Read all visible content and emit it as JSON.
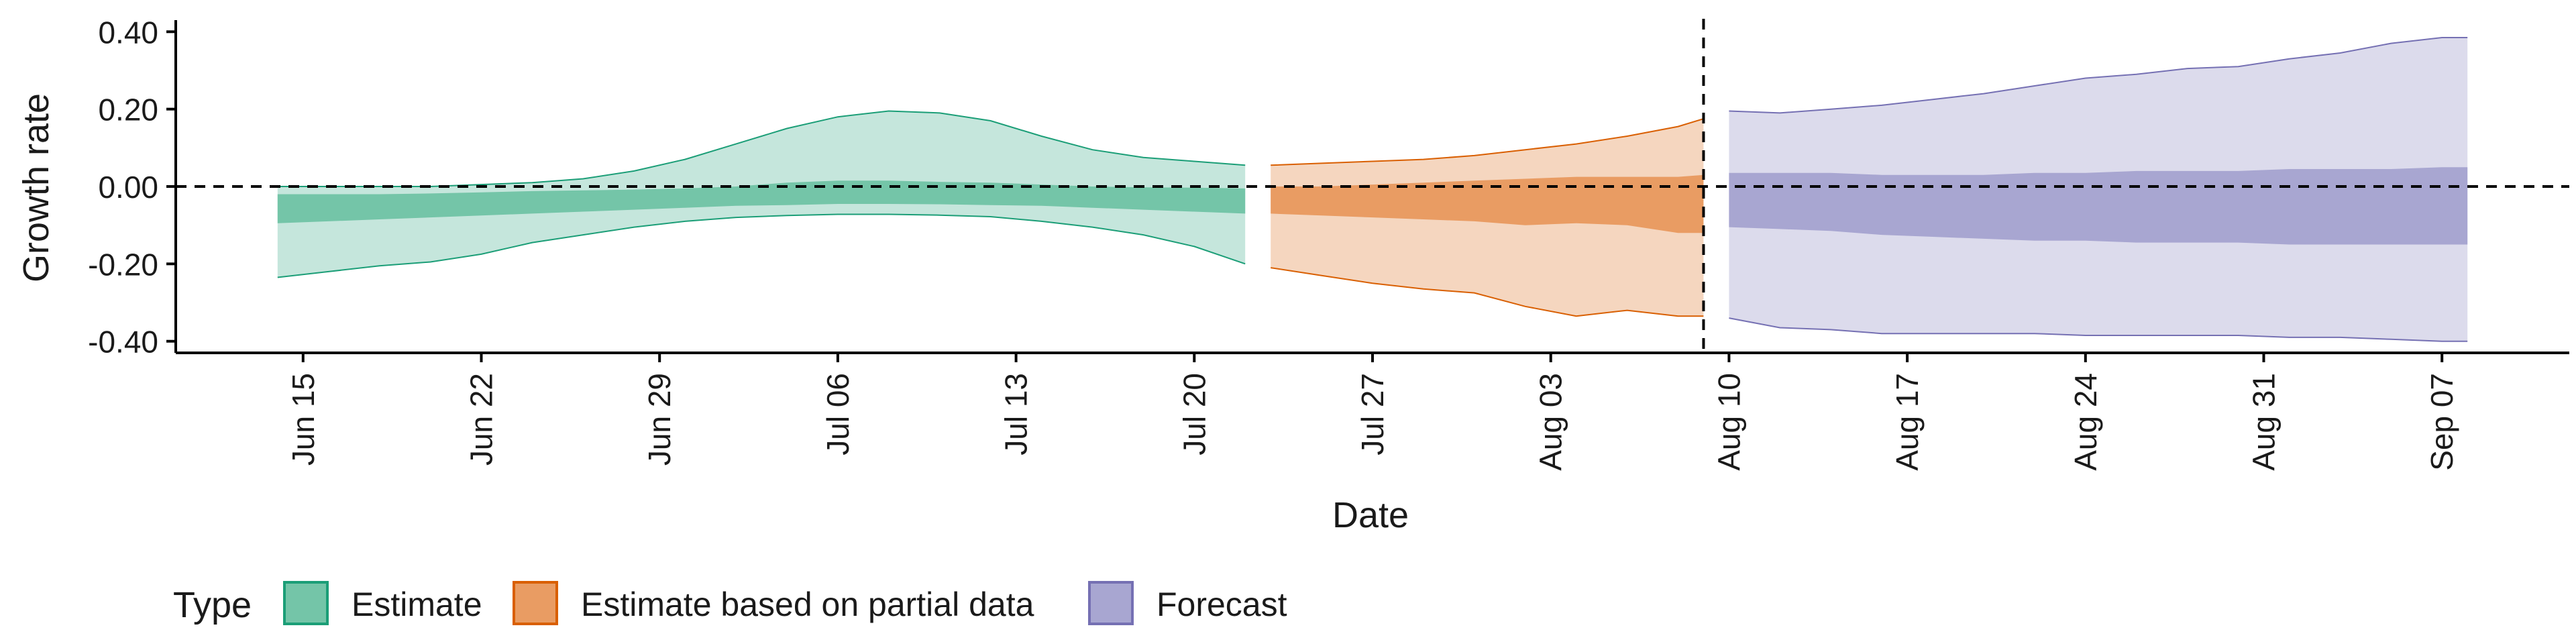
{
  "chart_data": {
    "type": "area",
    "xlabel": "Date",
    "ylabel": "Growth rate",
    "ylim": [
      -0.43,
      0.43
    ],
    "yticks": [
      "0.40",
      "0.20",
      "0.00",
      "-0.20",
      "-0.40"
    ],
    "xlim": [
      "2020-06-10",
      "2020-09-12"
    ],
    "xticks": [
      {
        "date": "2020-06-15",
        "label": "Jun 15"
      },
      {
        "date": "2020-06-22",
        "label": "Jun 22"
      },
      {
        "date": "2020-06-29",
        "label": "Jun 29"
      },
      {
        "date": "2020-07-06",
        "label": "Jul 06"
      },
      {
        "date": "2020-07-13",
        "label": "Jul 13"
      },
      {
        "date": "2020-07-20",
        "label": "Jul 20"
      },
      {
        "date": "2020-07-27",
        "label": "Jul 27"
      },
      {
        "date": "2020-08-03",
        "label": "Aug 03"
      },
      {
        "date": "2020-08-10",
        "label": "Aug 10"
      },
      {
        "date": "2020-08-17",
        "label": "Aug 17"
      },
      {
        "date": "2020-08-24",
        "label": "Aug 24"
      },
      {
        "date": "2020-08-31",
        "label": "Aug 31"
      },
      {
        "date": "2020-09-07",
        "label": "Sep 07"
      }
    ],
    "hline_y": 0,
    "vline_date": "2020-08-09",
    "grid": false,
    "legend": {
      "title": "Type",
      "position": "bottom-left",
      "entries": [
        "Estimate",
        "Estimate based on partial data",
        "Forecast"
      ]
    },
    "series": [
      {
        "name": "Estimate",
        "color": "#1b9e77",
        "fill": "#74c5a8",
        "fill_light": "#c5e6dc",
        "dates": [
          "2020-06-14",
          "2020-06-16",
          "2020-06-18",
          "2020-06-20",
          "2020-06-22",
          "2020-06-24",
          "2020-06-26",
          "2020-06-28",
          "2020-06-30",
          "2020-07-02",
          "2020-07-04",
          "2020-07-06",
          "2020-07-08",
          "2020-07-10",
          "2020-07-12",
          "2020-07-14",
          "2020-07-16",
          "2020-07-18",
          "2020-07-20",
          "2020-07-22"
        ],
        "lower90": [
          -0.235,
          -0.22,
          -0.205,
          -0.195,
          -0.175,
          -0.145,
          -0.125,
          -0.105,
          -0.09,
          -0.08,
          -0.075,
          -0.072,
          -0.072,
          -0.074,
          -0.078,
          -0.09,
          -0.105,
          -0.125,
          -0.155,
          -0.2
        ],
        "upper90": [
          0.0,
          0.0,
          0.0,
          0.0,
          0.005,
          0.01,
          0.02,
          0.04,
          0.07,
          0.11,
          0.15,
          0.18,
          0.195,
          0.19,
          0.17,
          0.13,
          0.095,
          0.075,
          0.065,
          0.055
        ],
        "lower50": [
          -0.095,
          -0.09,
          -0.085,
          -0.08,
          -0.075,
          -0.07,
          -0.065,
          -0.06,
          -0.055,
          -0.05,
          -0.048,
          -0.045,
          -0.045,
          -0.046,
          -0.048,
          -0.05,
          -0.055,
          -0.06,
          -0.065,
          -0.07
        ],
        "upper50": [
          -0.02,
          -0.02,
          -0.02,
          -0.018,
          -0.015,
          -0.012,
          -0.01,
          -0.008,
          -0.005,
          0.0,
          0.01,
          0.015,
          0.015,
          0.012,
          0.01,
          0.005,
          0.0,
          -0.002,
          -0.003,
          -0.005
        ]
      },
      {
        "name": "Estimate based on partial data",
        "color": "#d95f02",
        "fill": "#e99c63",
        "fill_light": "#f5d6bf",
        "dates": [
          "2020-07-23",
          "2020-07-25",
          "2020-07-27",
          "2020-07-29",
          "2020-07-31",
          "2020-08-02",
          "2020-08-04",
          "2020-08-06",
          "2020-08-08",
          "2020-08-09"
        ],
        "lower90": [
          -0.21,
          -0.23,
          -0.25,
          -0.265,
          -0.275,
          -0.31,
          -0.335,
          -0.32,
          -0.335,
          -0.335
        ],
        "upper90": [
          0.055,
          0.06,
          0.065,
          0.07,
          0.08,
          0.095,
          0.11,
          0.13,
          0.155,
          0.175
        ],
        "lower50": [
          -0.07,
          -0.075,
          -0.08,
          -0.085,
          -0.09,
          -0.1,
          -0.095,
          -0.1,
          -0.12,
          -0.12
        ],
        "upper50": [
          0.0,
          0.0,
          0.005,
          0.01,
          0.015,
          0.02,
          0.025,
          0.025,
          0.025,
          0.03
        ]
      },
      {
        "name": "Forecast",
        "color": "#7570b3",
        "fill": "#a8a6d1",
        "fill_light": "#dcdbec",
        "dates": [
          "2020-08-10",
          "2020-08-12",
          "2020-08-14",
          "2020-08-16",
          "2020-08-18",
          "2020-08-20",
          "2020-08-22",
          "2020-08-24",
          "2020-08-26",
          "2020-08-28",
          "2020-08-30",
          "2020-09-01",
          "2020-09-03",
          "2020-09-05",
          "2020-09-07",
          "2020-09-08"
        ],
        "lower90": [
          -0.34,
          -0.365,
          -0.37,
          -0.38,
          -0.38,
          -0.38,
          -0.38,
          -0.385,
          -0.385,
          -0.385,
          -0.385,
          -0.39,
          -0.39,
          -0.395,
          -0.4,
          -0.4
        ],
        "upper90": [
          0.195,
          0.19,
          0.2,
          0.21,
          0.225,
          0.24,
          0.26,
          0.28,
          0.29,
          0.305,
          0.31,
          0.33,
          0.345,
          0.37,
          0.385,
          0.385
        ],
        "lower50": [
          -0.105,
          -0.11,
          -0.115,
          -0.125,
          -0.13,
          -0.135,
          -0.14,
          -0.14,
          -0.145,
          -0.145,
          -0.145,
          -0.15,
          -0.15,
          -0.15,
          -0.15,
          -0.15
        ],
        "upper50": [
          0.035,
          0.035,
          0.035,
          0.03,
          0.03,
          0.03,
          0.035,
          0.035,
          0.04,
          0.04,
          0.04,
          0.045,
          0.045,
          0.045,
          0.05,
          0.05
        ]
      }
    ]
  }
}
